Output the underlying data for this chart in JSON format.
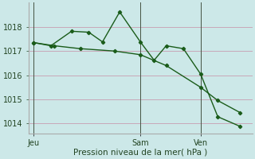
{
  "xlabel": "Pression niveau de la mer( hPa )",
  "bg_color": "#cce8e8",
  "grid_color": "#c8a8b8",
  "line_color": "#1a5c1a",
  "ylim": [
    1013.6,
    1019.0
  ],
  "xlim": [
    0,
    13
  ],
  "yticks": [
    1014,
    1015,
    1016,
    1017,
    1018
  ],
  "xtick_positions": [
    0.3,
    6.5,
    10.0
  ],
  "xtick_labels": [
    "Jeu",
    "Sam",
    "Ven"
  ],
  "vlines": [
    0.3,
    6.5,
    10.0
  ],
  "line1_x": [
    0.3,
    1.3,
    2.5,
    3.5,
    4.3,
    5.3,
    6.5,
    7.3,
    8.0,
    9.0,
    10.0,
    11.0,
    12.3
  ],
  "line1_y": [
    1017.35,
    1017.22,
    1017.82,
    1017.78,
    1017.38,
    1018.62,
    1017.38,
    1016.62,
    1017.22,
    1017.1,
    1016.05,
    1014.28,
    1013.88
  ],
  "line2_x": [
    0.3,
    1.5,
    3.0,
    5.0,
    6.5,
    8.0,
    10.0,
    11.0,
    12.3
  ],
  "line2_y": [
    1017.35,
    1017.22,
    1017.1,
    1017.0,
    1016.85,
    1016.4,
    1015.5,
    1014.95,
    1014.45
  ]
}
